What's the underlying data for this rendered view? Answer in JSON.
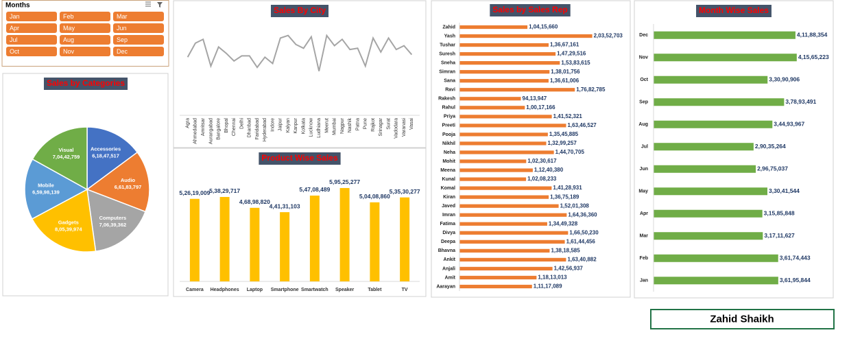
{
  "slicer": {
    "title": "Months",
    "items": [
      "Jan",
      "Feb",
      "Mar",
      "Apr",
      "May",
      "Jun",
      "Jul",
      "Aug",
      "Sep",
      "Oct",
      "Nov",
      "Dec"
    ],
    "color": "#ed7d31"
  },
  "author": "Zahid Shaikh",
  "chart_data": [
    {
      "type": "pie",
      "title": "Sales by Categories",
      "categories": [
        "Accessories",
        "Audio",
        "Computers",
        "Gadgets",
        "Mobile",
        "Visual"
      ],
      "values": [
        61847517,
        66183797,
        70639362,
        80539974,
        65998139,
        70442759
      ],
      "value_labels": [
        "6,18,47,517",
        "6,61,83,797",
        "7,06,39,362",
        "8,05,39,974",
        "6,59,98,139",
        "7,04,42,759"
      ],
      "colors": [
        "#4472c4",
        "#ed7d31",
        "#a5a5a5",
        "#ffc000",
        "#5b9bd5",
        "#70ad47"
      ]
    },
    {
      "type": "line",
      "title": "Sales By City",
      "categories": [
        "Agra",
        "Ahmedabad",
        "Amritsar",
        "Aurangabad",
        "Bangalore",
        "Bhopal",
        "Chennai",
        "Delhi",
        "Dhanbad",
        "Faridabad",
        "Hyderabad",
        "Indore",
        "Jaipur",
        "Kalyan",
        "Kanpur",
        "Kolkata",
        "Lucknow",
        "Ludhiana",
        "Meerut",
        "Mumbai",
        "Nagpur",
        "Nashik",
        "Patna",
        "Pune",
        "Rajkot",
        "Srinagar",
        "Surat",
        "Vadodara",
        "Varanasi",
        "Vasai"
      ],
      "values": [
        14400000,
        15500000,
        15800000,
        13700000,
        15200000,
        14700000,
        14100000,
        14500000,
        14500000,
        13600000,
        14400000,
        13900000,
        15900000,
        16100000,
        15400000,
        15100000,
        16000000,
        13300000,
        16100000,
        15300000,
        15800000,
        15000000,
        15100000,
        13700000,
        15900000,
        14800000,
        15900000,
        15000000,
        15300000,
        14600000
      ],
      "color": "#a5a5a5",
      "ylim": [
        10000000,
        17000000
      ]
    },
    {
      "type": "bar",
      "orientation": "vertical",
      "title": "Product Wise Sales",
      "categories": [
        "Camera",
        "Headphones",
        "Laptop",
        "Smartphone",
        "Smartwatch",
        "Speaker",
        "Tablet",
        "TV"
      ],
      "values": [
        52619009,
        53829717,
        46898820,
        44131103,
        54708489,
        59525277,
        50408860,
        53530277
      ],
      "value_labels": [
        "5,26,19,009",
        "5,38,29,717",
        "4,68,98,820",
        "4,41,31,103",
        "5,47,08,489",
        "5,95,25,277",
        "5,04,08,860",
        "5,35,30,277"
      ],
      "color": "#ffc000",
      "ylim": [
        0,
        70000000
      ]
    },
    {
      "type": "bar",
      "orientation": "horizontal",
      "title": "Sales by Sales Rep",
      "categories": [
        "Zahid",
        "Yash",
        "Tushar",
        "Suresh",
        "Sneha",
        "Simran",
        "Sana",
        "Ravi",
        "Rakesh",
        "Rahul",
        "Priya",
        "Preeti",
        "Pooja",
        "Nikhil",
        "Neha",
        "Mohit",
        "Meena",
        "Kunal",
        "Komal",
        "Kiran",
        "Javed",
        "Imran",
        "Fatima",
        "Divya",
        "Deepa",
        "Bhavna",
        "Ankit",
        "Anjali",
        "Amit",
        "Aarayan"
      ],
      "values": [
        10415660,
        20352703,
        13667161,
        14729516,
        15383615,
        13801756,
        13661006,
        17682785,
        9413947,
        10017166,
        14152321,
        16346527,
        13545885,
        13299257,
        14470705,
        10230617,
        11240380,
        10208233,
        14128931,
        13675189,
        15201308,
        16436360,
        13449328,
        16650230,
        16144456,
        13818585,
        16340882,
        14256937,
        11813013,
        11117089
      ],
      "value_labels": [
        "1,04,15,660",
        "2,03,52,703",
        "1,36,67,161",
        "1,47,29,516",
        "1,53,83,615",
        "1,38,01,756",
        "1,36,61,006",
        "1,76,82,785",
        "94,13,947",
        "1,00,17,166",
        "1,41,52,321",
        "1,63,46,527",
        "1,35,45,885",
        "1,32,99,257",
        "1,44,70,705",
        "1,02,30,617",
        "1,12,40,380",
        "1,02,08,233",
        "1,41,28,931",
        "1,36,75,189",
        "1,52,01,308",
        "1,64,36,360",
        "1,34,49,328",
        "1,66,50,230",
        "1,61,44,456",
        "1,38,18,585",
        "1,63,40,882",
        "1,42,56,937",
        "1,18,13,013",
        "1,11,17,089"
      ],
      "color": "#ed7d31",
      "xlim": [
        0,
        20500000
      ]
    },
    {
      "type": "bar",
      "orientation": "horizontal",
      "title": "Month Wise Sales",
      "categories": [
        "Dec",
        "Nov",
        "Oct",
        "Sep",
        "Aug",
        "Jul",
        "Jun",
        "May",
        "Apr",
        "Mar",
        "Feb",
        "Jan"
      ],
      "values": [
        41188354,
        41565223,
        33090906,
        37893491,
        34493967,
        29035264,
        29675037,
        33041544,
        31585848,
        31711627,
        36174443,
        36195844
      ],
      "value_labels": [
        "4,11,88,354",
        "4,15,65,223",
        "3,30,90,906",
        "3,78,93,491",
        "3,44,93,967",
        "2,90,35,264",
        "2,96,75,037",
        "3,30,41,544",
        "3,15,85,848",
        "3,17,11,627",
        "3,61,74,443",
        "3,61,95,844"
      ],
      "color": "#70ad47",
      "xlim": [
        0,
        42000000
      ]
    }
  ]
}
